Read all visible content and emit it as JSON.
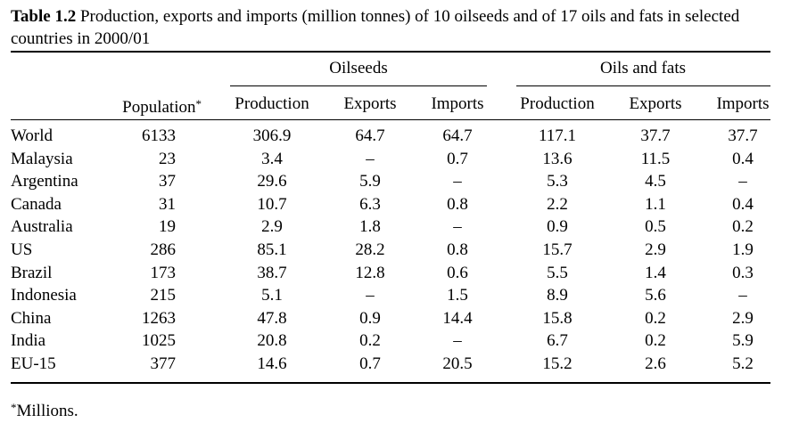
{
  "caption": {
    "label": "Table 1.2",
    "text": " Production, exports and imports (million tonnes) of 10 oilseeds and of 17 oils and fats in selected countries in 2000/01"
  },
  "groups": [
    "Oilseeds",
    "Oils and fats"
  ],
  "headers": {
    "population": "Population*",
    "oilseeds": [
      "Production",
      "Exports",
      "Imports"
    ],
    "oils_fats": [
      "Production",
      "Exports",
      "Imports"
    ]
  },
  "rows": [
    {
      "country": "World",
      "pop": "6133",
      "os": [
        "306.9",
        "64.7",
        "64.7"
      ],
      "of": [
        "117.1",
        "37.7",
        "37.7"
      ]
    },
    {
      "country": "Malaysia",
      "pop": "23",
      "os": [
        "3.4",
        "–",
        "0.7"
      ],
      "of": [
        "13.6",
        "11.5",
        "0.4"
      ]
    },
    {
      "country": "Argentina",
      "pop": "37",
      "os": [
        "29.6",
        "5.9",
        "–"
      ],
      "of": [
        "5.3",
        "4.5",
        "–"
      ]
    },
    {
      "country": "Canada",
      "pop": "31",
      "os": [
        "10.7",
        "6.3",
        "0.8"
      ],
      "of": [
        "2.2",
        "1.1",
        "0.4"
      ]
    },
    {
      "country": "Australia",
      "pop": "19",
      "os": [
        "2.9",
        "1.8",
        "–"
      ],
      "of": [
        "0.9",
        "0.5",
        "0.2"
      ]
    },
    {
      "country": "US",
      "pop": "286",
      "os": [
        "85.1",
        "28.2",
        "0.8"
      ],
      "of": [
        "15.7",
        "2.9",
        "1.9"
      ]
    },
    {
      "country": "Brazil",
      "pop": "173",
      "os": [
        "38.7",
        "12.8",
        "0.6"
      ],
      "of": [
        "5.5",
        "1.4",
        "0.3"
      ]
    },
    {
      "country": "Indonesia",
      "pop": "215",
      "os": [
        "5.1",
        "–",
        "1.5"
      ],
      "of": [
        "8.9",
        "5.6",
        "–"
      ]
    },
    {
      "country": "China",
      "pop": "1263",
      "os": [
        "47.8",
        "0.9",
        "14.4"
      ],
      "of": [
        "15.8",
        "0.2",
        "2.9"
      ]
    },
    {
      "country": "India",
      "pop": "1025",
      "os": [
        "20.8",
        "0.2",
        "–"
      ],
      "of": [
        "6.7",
        "0.2",
        "5.9"
      ]
    },
    {
      "country": "EU-15",
      "pop": "377",
      "os": [
        "14.6",
        "0.7",
        "20.5"
      ],
      "of": [
        "15.2",
        "2.6",
        "5.2"
      ]
    }
  ],
  "footnote": "*Millions."
}
